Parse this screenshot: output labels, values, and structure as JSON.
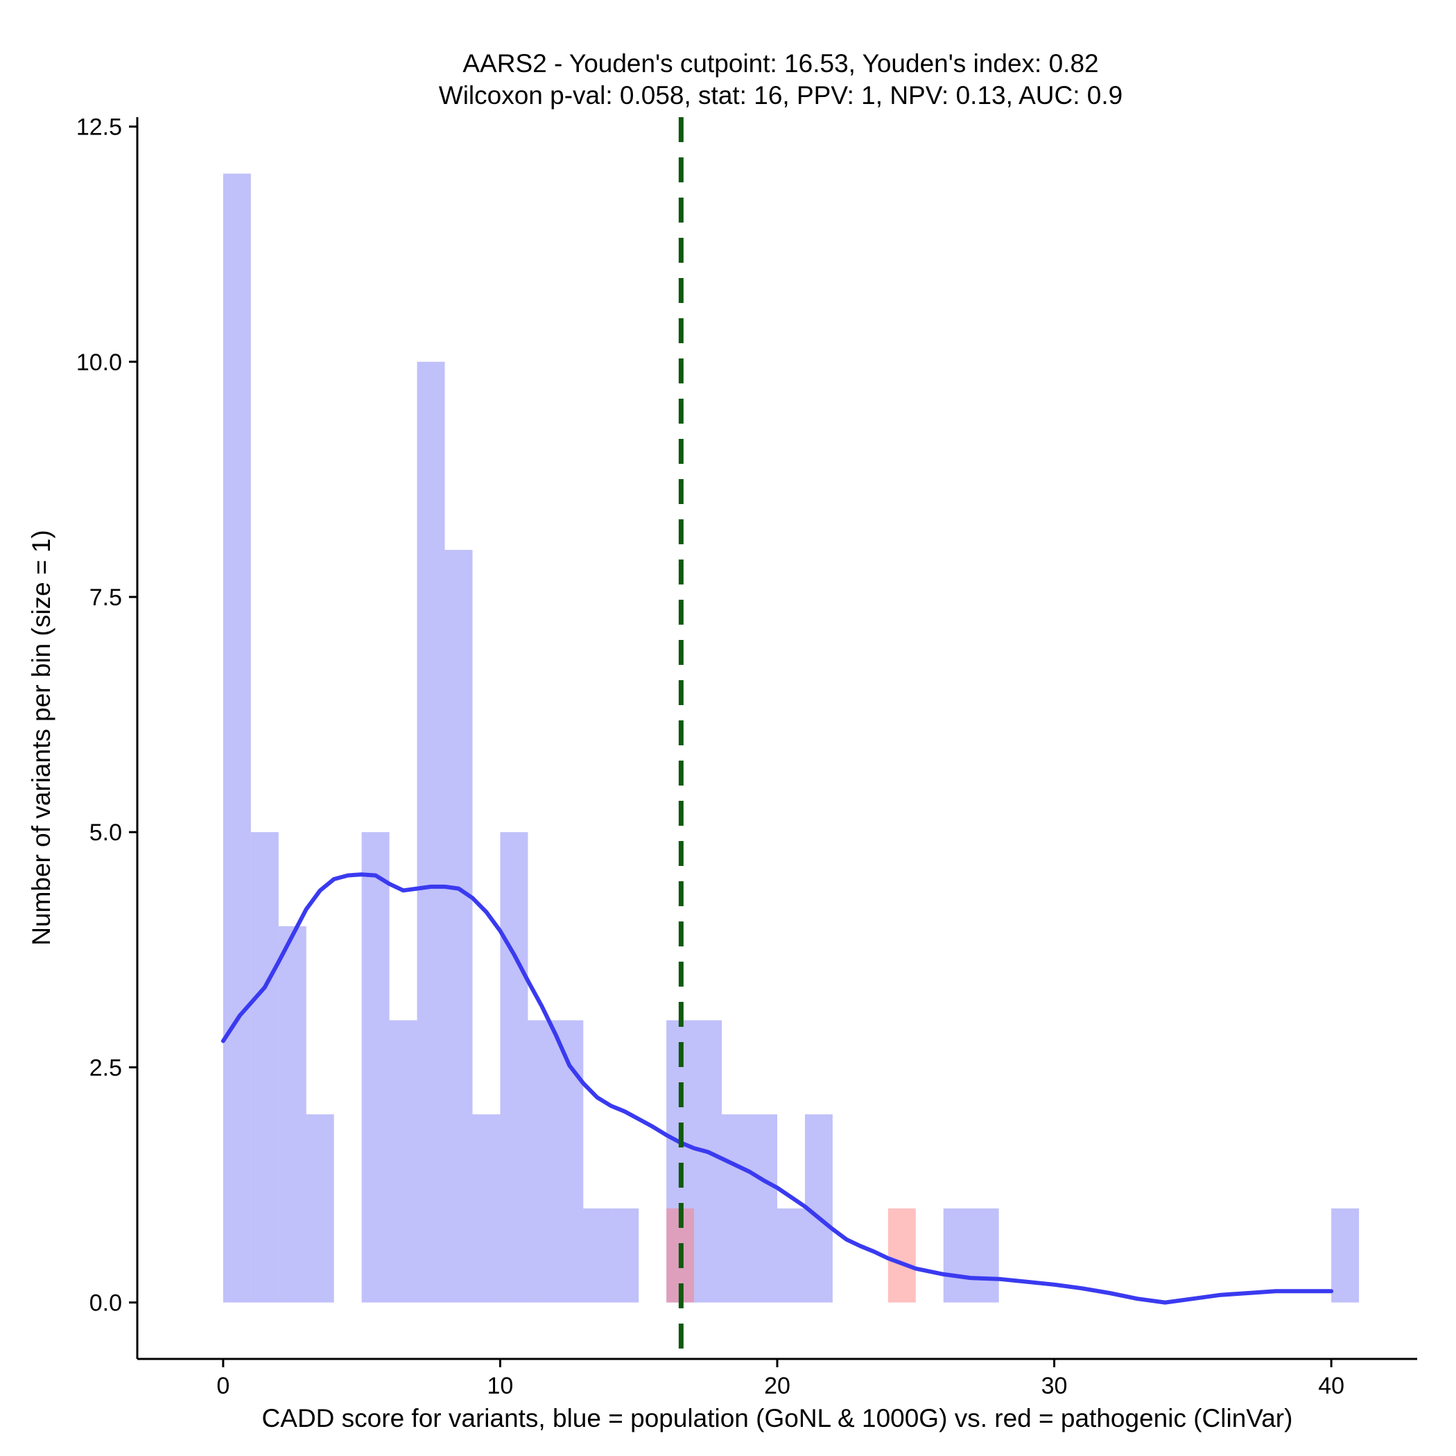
{
  "chart_data": {
    "type": "histogram",
    "title": "AARS2 - Youden's cutpoint: 16.53, Youden's index: 0.82",
    "subtitle": "Wilcoxon p-val: 0.058, stat: 16, PPV: 1, NPV: 0.13, AUC: 0.9",
    "xlabel": "CADD score for variants, blue = population (GoNL & 1000G) vs. red = pathogenic (ClinVar)",
    "ylabel": "Number of variants per bin (size = 1)",
    "xlim": [
      -3.1,
      43.1
    ],
    "ylim": [
      -0.6,
      12.6
    ],
    "x_ticks": [
      0,
      10,
      20,
      30,
      40
    ],
    "x_tick_labels": [
      "0",
      "10",
      "20",
      "30",
      "40"
    ],
    "y_ticks": [
      0,
      2.5,
      5,
      7.5,
      10,
      12.5
    ],
    "y_tick_labels": [
      "0.0",
      "2.5",
      "5.0",
      "7.5",
      "10.0",
      "12.5"
    ],
    "bin_width": 1,
    "series": [
      {
        "name": "population (GoNL & 1000G)",
        "color": "#7b7bf5",
        "bins": [
          {
            "start": 0,
            "count": 12
          },
          {
            "start": 1,
            "count": 5
          },
          {
            "start": 2,
            "count": 4
          },
          {
            "start": 3,
            "count": 2
          },
          {
            "start": 5,
            "count": 5
          },
          {
            "start": 6,
            "count": 3
          },
          {
            "start": 7,
            "count": 10
          },
          {
            "start": 8,
            "count": 8
          },
          {
            "start": 9,
            "count": 2
          },
          {
            "start": 10,
            "count": 5
          },
          {
            "start": 11,
            "count": 3
          },
          {
            "start": 12,
            "count": 3
          },
          {
            "start": 13,
            "count": 1
          },
          {
            "start": 14,
            "count": 1
          },
          {
            "start": 16,
            "count": 3
          },
          {
            "start": 17,
            "count": 3
          },
          {
            "start": 18,
            "count": 2
          },
          {
            "start": 19,
            "count": 2
          },
          {
            "start": 20,
            "count": 1
          },
          {
            "start": 21,
            "count": 2
          },
          {
            "start": 26,
            "count": 1
          },
          {
            "start": 27,
            "count": 1
          },
          {
            "start": 40,
            "count": 1
          }
        ]
      },
      {
        "name": "pathogenic (ClinVar)",
        "color": "#ff7b7b",
        "bins": [
          {
            "start": 16,
            "count": 1
          },
          {
            "start": 24,
            "count": 1
          }
        ]
      }
    ],
    "density_curve": {
      "name": "population density",
      "color": "#3a3af0",
      "x": [
        0,
        0.6,
        1.5,
        2,
        2.5,
        3,
        3.5,
        4,
        4.5,
        5,
        5.5,
        6,
        6.5,
        7,
        7.5,
        8,
        8.5,
        9,
        9.5,
        10,
        10.5,
        11,
        11.5,
        12,
        12.5,
        13,
        13.5,
        14,
        14.5,
        15,
        15.5,
        16,
        16.5,
        17,
        17.5,
        18,
        18.5,
        19,
        19.5,
        20,
        20.5,
        21,
        21.5,
        22,
        22.5,
        23,
        23.5,
        24,
        25,
        26,
        27,
        28,
        29,
        30,
        31,
        32,
        33,
        34,
        35,
        36,
        37,
        38,
        39,
        40
      ],
      "y": [
        2.78,
        3.05,
        3.35,
        3.62,
        3.9,
        4.18,
        4.38,
        4.5,
        4.54,
        4.55,
        4.54,
        4.45,
        4.38,
        4.4,
        4.42,
        4.42,
        4.4,
        4.3,
        4.15,
        3.95,
        3.7,
        3.42,
        3.15,
        2.85,
        2.52,
        2.33,
        2.18,
        2.09,
        2.03,
        1.95,
        1.87,
        1.78,
        1.7,
        1.64,
        1.6,
        1.53,
        1.46,
        1.39,
        1.3,
        1.22,
        1.12,
        1.02,
        0.9,
        0.78,
        0.67,
        0.6,
        0.54,
        0.47,
        0.36,
        0.3,
        0.26,
        0.25,
        0.22,
        0.19,
        0.15,
        0.1,
        0.04,
        0.0,
        0.04,
        0.08,
        0.1,
        0.12,
        0.12,
        0.12
      ]
    },
    "cutpoint": {
      "x": 16.53,
      "color": "#0f5a0f",
      "style": "dashed"
    },
    "grid": false,
    "legend": "none"
  }
}
